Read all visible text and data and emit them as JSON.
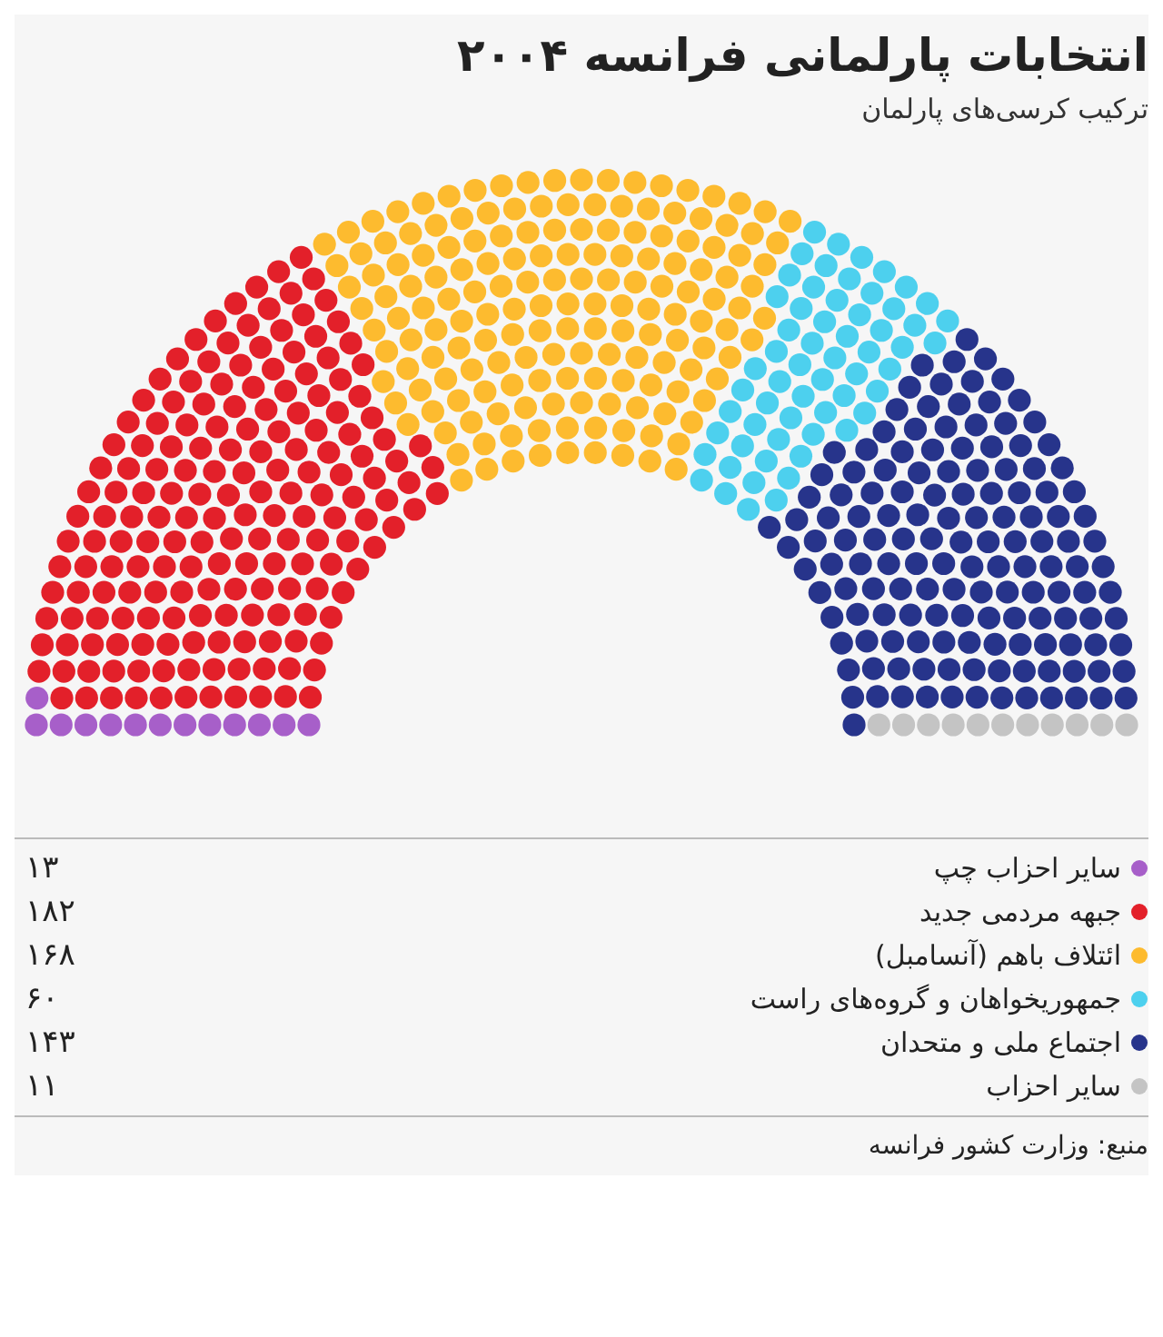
{
  "chart_data": {
    "type": "other",
    "title": "انتخابات پارلمانی فرانسه ۲۰۰۴",
    "subtitle": "ترکیب کرسی‌های پارلمان",
    "categories": [
      "سایر احزاب چپ",
      "جبهه مردمی جدید",
      "ائتلاف باهم (آنسامبل)",
      "جمهوریخواهان و گروه‌های راست",
      "اجتماع ملی و متحدان",
      "سایر احزاب"
    ],
    "values": [
      13,
      182,
      168,
      60,
      143,
      11
    ],
    "value_labels": [
      "۱۳",
      "۱۸۲",
      "۱۶۸",
      "۶۰",
      "۱۴۳",
      "۱۱"
    ],
    "colors": [
      "#a75fc9",
      "#e3202a",
      "#fdbb2f",
      "#4dd0ee",
      "#27348b",
      "#c4c4c4"
    ],
    "annotations": [
      "منبع: وزارت کشور فرانسه"
    ]
  }
}
